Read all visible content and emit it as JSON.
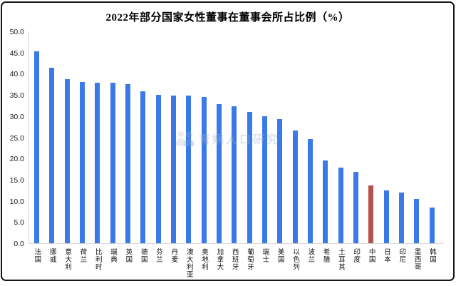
{
  "card": {
    "title": "2022年部分国家女性董事在董事会所占比例（%）"
  },
  "chart_data": {
    "type": "bar",
    "title": "2022年部分国家女性董事在董事会所占比例（%）",
    "xlabel": "",
    "ylabel": "",
    "ylim": [
      0,
      50
    ],
    "ytick_step": 5,
    "ytick_labels": [
      "50.0",
      "45.0",
      "40.0",
      "35.0",
      "30.0",
      "25.0",
      "20.0",
      "15.0",
      "10.0",
      "5.0",
      "0.0"
    ],
    "grid": false,
    "legend": false,
    "categories": [
      "法国",
      "挪威",
      "意大利",
      "荷兰",
      "比利时",
      "瑞典",
      "英国",
      "德国",
      "芬兰",
      "丹麦",
      "澳大利亚",
      "奥地利",
      "加拿大",
      "西班牙",
      "葡萄牙",
      "瑞士",
      "美国",
      "以色列",
      "波兰",
      "希腊",
      "土耳其",
      "印度",
      "中国",
      "日本",
      "印尼",
      "墨西哥",
      "韩国"
    ],
    "values": [
      45.3,
      41.5,
      38.7,
      38.0,
      37.9,
      37.8,
      37.6,
      35.8,
      35.1,
      34.9,
      34.9,
      34.5,
      32.9,
      32.4,
      30.9,
      29.9,
      29.3,
      26.6,
      24.5,
      19.6,
      17.8,
      16.9,
      13.7,
      12.5,
      11.9,
      10.4,
      8.5
    ],
    "highlight_category": "中国",
    "highlight_index": 22,
    "bar_color": "#3a7ae8",
    "highlight_color": "#b5514e",
    "axis_line_color": "#d6d6d6"
  },
  "watermark": {
    "text": "育娲人口研究",
    "logo": "two-person-logo",
    "logo_colors": {
      "left_person": "#c7ccd4",
      "right_person": "#7da4e0"
    }
  }
}
